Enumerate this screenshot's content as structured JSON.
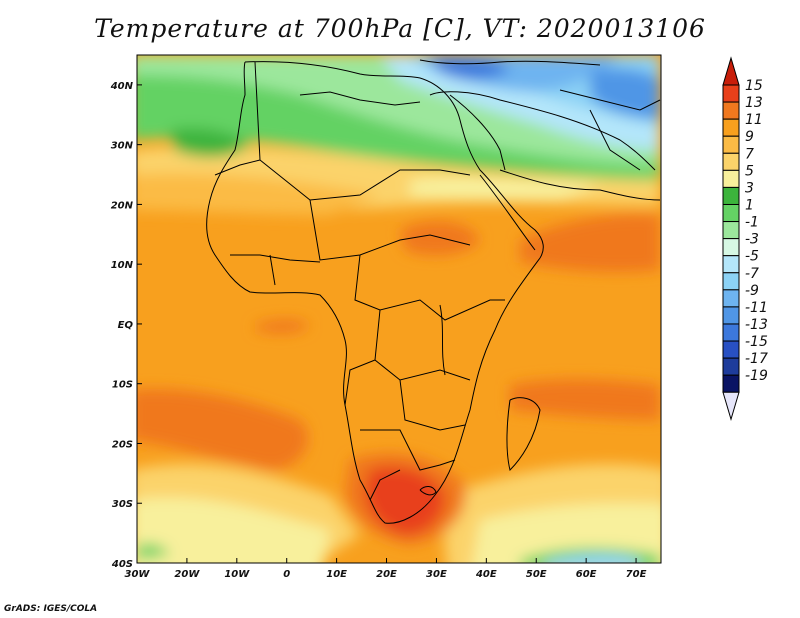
{
  "title": "Temperature at 700hPa [C], VT: 2020013106",
  "credit": "GrADS: IGES/COLA",
  "map": {
    "projection": "lat-lon",
    "lon_range": [
      -30,
      75
    ],
    "lat_range": [
      -40,
      45
    ],
    "lat_ticks": [
      "40N",
      "30N",
      "20N",
      "10N",
      "EQ",
      "10S",
      "20S",
      "30S",
      "40S"
    ],
    "lon_ticks": [
      "30W",
      "20W",
      "10W",
      "0",
      "10E",
      "20E",
      "30E",
      "40E",
      "50E",
      "60E",
      "70E"
    ],
    "variable": "700hPa temperature",
    "units": "C"
  },
  "colorbar": {
    "labels": [
      "15",
      "13",
      "11",
      "9",
      "7",
      "5",
      "3",
      "1",
      "-1",
      "-3",
      "-5",
      "-7",
      "-9",
      "-11",
      "-13",
      "-15",
      "-17",
      "-19"
    ],
    "colors": {
      "above_15": "#c81e0a",
      "13_15": "#e8401a",
      "11_13": "#f0781e",
      "9_11": "#f8a01e",
      "7_9": "#fbbb45",
      "5_7": "#fbd36a",
      "3_5": "#f8f09c",
      "1_3": "#3cb43c",
      "-1_1": "#64d264",
      "-3_-1": "#9ce79c",
      "-5_-3": "#d7f8e4",
      "-7_-5": "#b4e6fa",
      "-9_-7": "#8cd2f5",
      "-11_-9": "#6eb4f0",
      "-13_-11": "#5096e6",
      "-15_-13": "#3c78dc",
      "-17_-15": "#2850c3",
      "-19_-17": "#1e3c9b",
      "below_-19": "#0a1464",
      "under_arrow": "#e6e6fa"
    }
  }
}
